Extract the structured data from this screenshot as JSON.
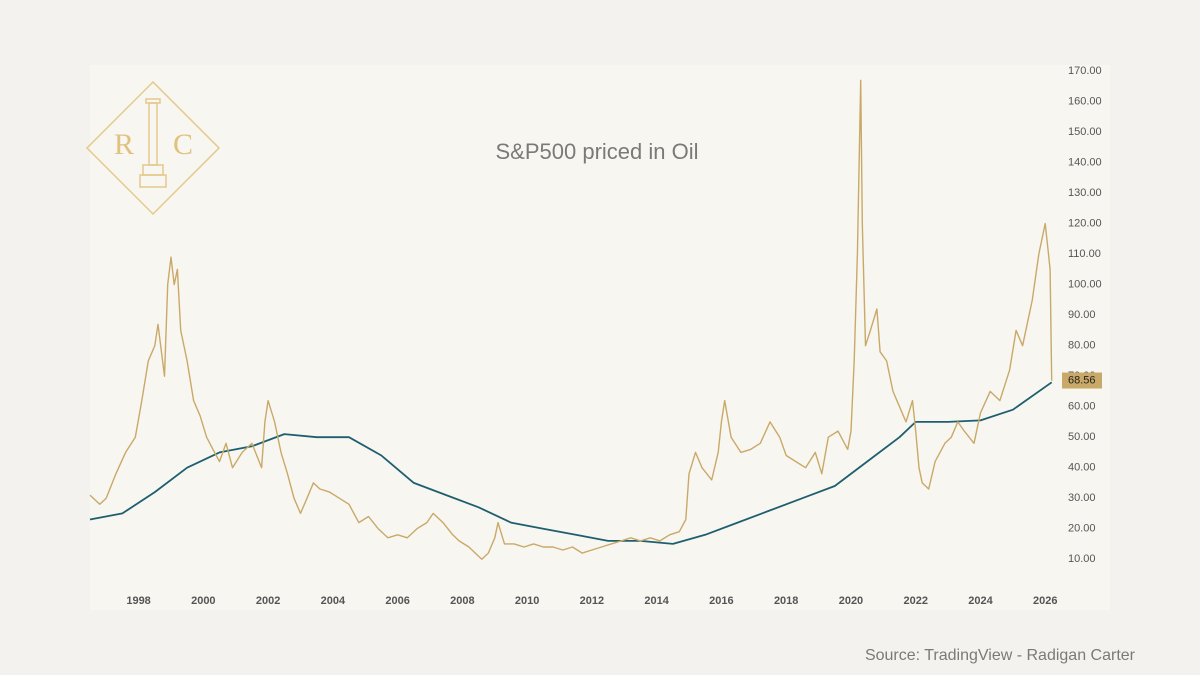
{
  "chart_data": {
    "type": "line",
    "title": "S&P500 priced in Oil",
    "source": "Source: TradingView - Radigan Carter",
    "logo_letters": [
      "R",
      "C"
    ],
    "xlim": [
      1996.5,
      2028
    ],
    "xticks": [
      1998,
      2000,
      2002,
      2004,
      2006,
      2008,
      2010,
      2012,
      2014,
      2016,
      2018,
      2020,
      2022,
      2024,
      2026
    ],
    "ylim": [
      -6,
      172
    ],
    "yticks": [
      {
        "value": 10,
        "label": "10.00"
      },
      {
        "value": 20,
        "label": "20.00"
      },
      {
        "value": 30,
        "label": "30.00"
      },
      {
        "value": 40,
        "label": "40.00"
      },
      {
        "value": 50,
        "label": "50.00"
      },
      {
        "value": 60,
        "label": "60.00"
      },
      {
        "value": 70,
        "label": "70.00"
      },
      {
        "value": 80,
        "label": "80.00"
      },
      {
        "value": 90,
        "label": "90.00"
      },
      {
        "value": 100,
        "label": "100.00"
      },
      {
        "value": 110,
        "label": "110.00"
      },
      {
        "value": 120,
        "label": "120.00"
      },
      {
        "value": 130,
        "label": "130.00"
      },
      {
        "value": 140,
        "label": "140.00"
      },
      {
        "value": 150,
        "label": "150.00"
      },
      {
        "value": 160,
        "label": "160.00"
      },
      {
        "value": 170,
        "label": "170.00"
      }
    ],
    "grid": false,
    "series": [
      {
        "color": "#c9a968",
        "x": [
          1996.5,
          1996.8,
          1997.0,
          1997.3,
          1997.6,
          1997.9,
          1998.1,
          1998.3,
          1998.5,
          1998.6,
          1998.8,
          1998.9,
          1999.0,
          1999.1,
          1999.2,
          1999.3,
          1999.5,
          1999.7,
          1999.9,
          2000.1,
          2000.3,
          2000.5,
          2000.7,
          2000.9,
          2001.2,
          2001.5,
          2001.8,
          2001.9,
          2002.0,
          2002.2,
          2002.4,
          2002.6,
          2002.8,
          2003.0,
          2003.2,
          2003.4,
          2003.6,
          2003.9,
          2004.2,
          2004.5,
          2004.8,
          2005.1,
          2005.4,
          2005.7,
          2006.0,
          2006.3,
          2006.6,
          2006.9,
          2007.1,
          2007.4,
          2007.7,
          2007.9,
          2008.2,
          2008.4,
          2008.6,
          2008.8,
          2009.0,
          2009.1,
          2009.3,
          2009.6,
          2009.9,
          2010.2,
          2010.5,
          2010.8,
          2011.1,
          2011.4,
          2011.7,
          2012.0,
          2012.3,
          2012.6,
          2012.9,
          2013.2,
          2013.5,
          2013.8,
          2014.1,
          2014.4,
          2014.7,
          2014.9,
          2015.0,
          2015.2,
          2015.4,
          2015.7,
          2015.9,
          2016.0,
          2016.1,
          2016.3,
          2016.6,
          2016.9,
          2017.2,
          2017.5,
          2017.8,
          2018.0,
          2018.3,
          2018.6,
          2018.9,
          2019.1,
          2019.3,
          2019.6,
          2019.9,
          2020.0,
          2020.1,
          2020.2,
          2020.3,
          2020.35,
          2020.45,
          2020.6,
          2020.8,
          2020.9,
          2021.1,
          2021.3,
          2021.5,
          2021.7,
          2021.9,
          2022.0,
          2022.1,
          2022.2,
          2022.4,
          2022.6,
          2022.9,
          2023.1,
          2023.3,
          2023.5,
          2023.8,
          2024.0,
          2024.3,
          2024.6,
          2024.9,
          2025.1,
          2025.3,
          2025.6,
          2025.8,
          2026.0,
          2026.1,
          2026.15,
          2026.2
        ],
        "values": [
          31,
          28,
          30,
          38,
          45,
          50,
          62,
          75,
          80,
          87,
          70,
          100,
          109,
          100,
          105,
          85,
          75,
          62,
          57,
          50,
          46,
          42,
          48,
          40,
          45,
          48,
          40,
          55,
          62,
          55,
          45,
          38,
          30,
          25,
          30,
          35,
          33,
          32,
          30,
          28,
          22,
          24,
          20,
          17,
          18,
          17,
          20,
          22,
          25,
          22,
          18,
          16,
          14,
          12,
          10,
          12,
          17,
          22,
          15,
          15,
          14,
          15,
          14,
          14,
          13,
          14,
          12,
          13,
          14,
          15,
          16,
          17,
          16,
          17,
          16,
          18,
          19,
          23,
          38,
          45,
          40,
          36,
          45,
          55,
          62,
          50,
          45,
          46,
          48,
          55,
          50,
          44,
          42,
          40,
          45,
          38,
          50,
          52,
          46,
          52,
          75,
          110,
          167,
          120,
          80,
          85,
          92,
          78,
          75,
          65,
          60,
          55,
          62,
          52,
          40,
          35,
          33,
          42,
          48,
          50,
          55,
          52,
          48,
          58,
          65,
          62,
          72,
          85,
          80,
          95,
          110,
          120,
          110,
          105,
          68.56
        ]
      },
      {
        "color": "#1e5f6f",
        "x": [
          1996.5,
          1997.5,
          1998.5,
          1999.5,
          2000.5,
          2001.5,
          2002.5,
          2003.5,
          2004.5,
          2005.5,
          2006.5,
          2007.5,
          2008.5,
          2009.5,
          2010.5,
          2011.5,
          2012.5,
          2013.5,
          2014.5,
          2015.5,
          2016.5,
          2017.5,
          2018.5,
          2019.5,
          2020.5,
          2021.5,
          2022.0,
          2023.0,
          2024.0,
          2025.0,
          2026.2
        ],
        "values": [
          23,
          25,
          32,
          40,
          45,
          47,
          51,
          50,
          50,
          44,
          35,
          31,
          27,
          22,
          20,
          18,
          16,
          16,
          15,
          18,
          22,
          26,
          30,
          34,
          42,
          50,
          55,
          55,
          55.5,
          59,
          68
        ]
      }
    ]
  }
}
